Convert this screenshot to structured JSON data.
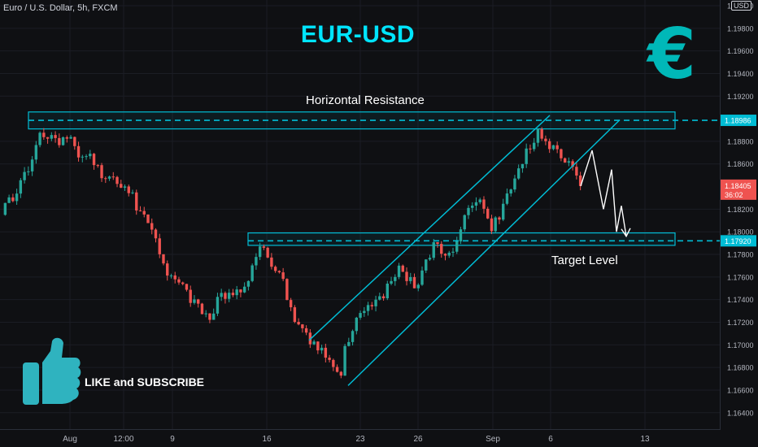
{
  "header": {
    "symbol": "Euro / U.S. Dollar, 5h, FXCM",
    "title": "EUR-USD",
    "currency_badge": "USD"
  },
  "annotations": {
    "resistance_label": "Horizontal Resistance",
    "target_label": "Target Level",
    "cta_label": "LIKE and SUBSCRIBE"
  },
  "icons": {
    "euro_symbol": "€",
    "euro_color": "#00b8b8",
    "thumb": "thumbs-up-icon",
    "thumb_color": "#2fb3bf"
  },
  "colors": {
    "background": "#0f1013",
    "accent": "#00e5ff",
    "up": "#26a69a",
    "down": "#ef5350",
    "zone": "#00bcd4",
    "resistance_badge": "#00bcd4",
    "last_price_badge": "#ef5350"
  },
  "chart_data": {
    "type": "candlestick",
    "y_axis": {
      "side": "right",
      "ticks": [
        "1.20000",
        "1.19800",
        "1.19600",
        "1.19400",
        "1.19200",
        "1.18800",
        "1.18600",
        "1.18200",
        "1.18000",
        "1.17800",
        "1.17600",
        "1.17400",
        "1.17200",
        "1.17000",
        "1.16800",
        "1.16600",
        "1.16400"
      ],
      "range": [
        1.1632,
        1.2003
      ]
    },
    "x_axis": {
      "ticks": [
        "Aug",
        "12:00",
        "9",
        "16",
        "23",
        "26",
        "Sep",
        "6",
        "13"
      ]
    },
    "price_labels": {
      "resistance_price": "1.18986",
      "target_price": "1.17920",
      "last_price": "1.18405",
      "countdown": "36:02"
    },
    "levels": {
      "resistance": 1.18986,
      "target": 1.1792,
      "resistance_zone": [
        1.1891,
        1.1906
      ],
      "target_zone": [
        1.1788,
        1.1799
      ]
    },
    "waypoints": [
      [
        0,
        1.1815
      ],
      [
        6,
        1.1835
      ],
      [
        12,
        1.1828
      ],
      [
        20,
        1.1842
      ],
      [
        30,
        1.186
      ],
      [
        38,
        1.1885
      ],
      [
        48,
        1.188
      ],
      [
        55,
        1.189
      ],
      [
        62,
        1.1878
      ],
      [
        70,
        1.1884
      ],
      [
        78,
        1.187
      ],
      [
        88,
        1.1867
      ],
      [
        96,
        1.1861
      ],
      [
        110,
        1.1846
      ],
      [
        124,
        1.1843
      ],
      [
        136,
        1.183
      ],
      [
        148,
        1.1812
      ],
      [
        160,
        1.179
      ],
      [
        170,
        1.1766
      ],
      [
        180,
        1.176
      ],
      [
        190,
        1.1747
      ],
      [
        198,
        1.174
      ],
      [
        206,
        1.173
      ],
      [
        215,
        1.172
      ],
      [
        224,
        1.174
      ],
      [
        232,
        1.1744
      ],
      [
        240,
        1.1742
      ],
      [
        248,
        1.1748
      ],
      [
        256,
        1.1757
      ],
      [
        262,
        1.1772
      ],
      [
        267,
        1.179
      ],
      [
        272,
        1.1781
      ],
      [
        278,
        1.1772
      ],
      [
        286,
        1.1768
      ],
      [
        294,
        1.1749
      ],
      [
        302,
        1.1725
      ],
      [
        310,
        1.1712
      ],
      [
        320,
        1.1704
      ],
      [
        330,
        1.1696
      ],
      [
        338,
        1.169
      ],
      [
        346,
        1.1684
      ],
      [
        352,
        1.1675
      ],
      [
        358,
        1.1705
      ],
      [
        364,
        1.171
      ],
      [
        370,
        1.1725
      ],
      [
        378,
        1.1735
      ],
      [
        386,
        1.174
      ],
      [
        392,
        1.1738
      ],
      [
        398,
        1.175
      ],
      [
        404,
        1.176
      ],
      [
        410,
        1.1768
      ],
      [
        416,
        1.176
      ],
      [
        422,
        1.1758
      ],
      [
        428,
        1.1754
      ],
      [
        434,
        1.1757
      ],
      [
        440,
        1.1774
      ],
      [
        446,
        1.1786
      ],
      [
        452,
        1.1784
      ],
      [
        458,
        1.178
      ],
      [
        466,
        1.1781
      ],
      [
        472,
        1.1792
      ],
      [
        478,
        1.1815
      ],
      [
        484,
        1.1821
      ],
      [
        490,
        1.1825
      ],
      [
        496,
        1.1829
      ],
      [
        502,
        1.1813
      ],
      [
        508,
        1.1803
      ],
      [
        514,
        1.181
      ],
      [
        520,
        1.1827
      ],
      [
        526,
        1.1835
      ],
      [
        532,
        1.1845
      ],
      [
        538,
        1.1858
      ],
      [
        544,
        1.187
      ],
      [
        550,
        1.188
      ],
      [
        556,
        1.1887
      ],
      [
        562,
        1.1875
      ],
      [
        570,
        1.1876
      ],
      [
        578,
        1.1871
      ],
      [
        586,
        1.1864
      ],
      [
        592,
        1.1856
      ],
      [
        598,
        1.18405
      ]
    ],
    "overlays": {
      "channel_upper": [
        [
          1.1704,
          1.1724
        ],
        [
          1.1903,
          1.1905
        ]
      ],
      "channel_lower": [
        [
          1.1664,
          1.1667
        ],
        [
          1.1891,
          1.1899
        ]
      ],
      "projection": [
        1.18405,
        1.1872,
        1.182,
        1.1855,
        1.18,
        1.1823,
        1.1796
      ]
    }
  }
}
